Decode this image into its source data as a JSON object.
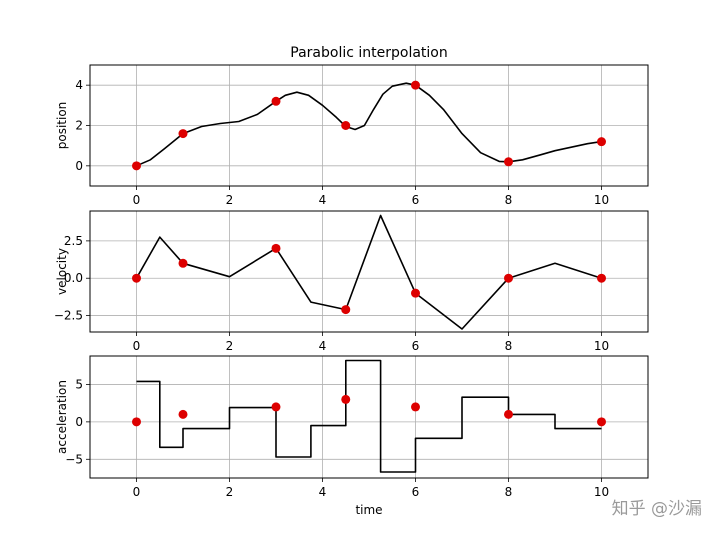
{
  "chart_data": {
    "type": "line",
    "title": "Parabolic interpolation",
    "xlabel": "time",
    "xlim": [
      -1,
      11
    ],
    "xticks": [
      0,
      2,
      4,
      6,
      8,
      10
    ],
    "point_color": "#dd0000",
    "line_color": "#000000",
    "watermark": "知乎 @沙漏",
    "grid": true,
    "subplots": [
      {
        "ylabel": "position",
        "ylim": [
          -1,
          5
        ],
        "yticks": [
          0,
          2,
          4
        ],
        "points": {
          "x": [
            0,
            1,
            3,
            4.5,
            6,
            8,
            10
          ],
          "y": [
            0,
            1.6,
            3.2,
            2.0,
            4.0,
            0.2,
            1.2
          ]
        },
        "line": {
          "x": [
            0,
            0.3,
            0.6,
            1.0,
            1.4,
            1.8,
            2.2,
            2.6,
            3.0,
            3.2,
            3.45,
            3.7,
            4.0,
            4.3,
            4.5,
            4.7,
            4.9,
            5.1,
            5.3,
            5.5,
            5.8,
            6.0,
            6.3,
            6.6,
            7.0,
            7.4,
            7.8,
            8.0,
            8.3,
            8.7,
            9.0,
            9.4,
            9.7,
            10.0
          ],
          "y": [
            0,
            0.3,
            0.85,
            1.6,
            1.95,
            2.1,
            2.2,
            2.55,
            3.2,
            3.5,
            3.65,
            3.5,
            3.0,
            2.4,
            1.95,
            1.8,
            2.0,
            2.8,
            3.55,
            3.95,
            4.1,
            4.0,
            3.5,
            2.8,
            1.6,
            0.65,
            0.22,
            0.2,
            0.3,
            0.55,
            0.75,
            0.95,
            1.1,
            1.2
          ]
        }
      },
      {
        "ylabel": "velocity",
        "ylim": [
          -3.6,
          4.5
        ],
        "yticks": [
          -2.5,
          0.0,
          2.5
        ],
        "ytick_labels": [
          "−2.5",
          "0.0",
          "2.5"
        ],
        "points": {
          "x": [
            0,
            1,
            3,
            4.5,
            6,
            8,
            10
          ],
          "y": [
            0,
            1.0,
            2.0,
            -2.1,
            -1.0,
            0,
            0
          ]
        },
        "line": {
          "x": [
            0,
            0.5,
            1.0,
            2.0,
            3.0,
            3.75,
            4.5,
            5.25,
            6.0,
            7.0,
            8.0,
            9.0,
            10.0
          ],
          "y": [
            0,
            2.75,
            1.0,
            0.1,
            2.0,
            -1.6,
            -2.1,
            4.2,
            -1.0,
            -3.4,
            0,
            1.0,
            0
          ]
        }
      },
      {
        "ylabel": "acceleration",
        "ylim": [
          -7.5,
          8.8
        ],
        "yticks": [
          -5,
          0,
          5
        ],
        "ytick_labels": [
          "−5",
          "0",
          "5"
        ],
        "points": {
          "x": [
            0,
            1,
            3,
            4.5,
            6,
            8,
            10
          ],
          "y": [
            0,
            1,
            2,
            3,
            2,
            1,
            0
          ]
        },
        "steps": [
          {
            "x0": 0,
            "x1": 0.5,
            "y": 5.4
          },
          {
            "x0": 0.5,
            "x1": 1.0,
            "y": -3.4
          },
          {
            "x0": 1.0,
            "x1": 2.0,
            "y": -0.9
          },
          {
            "x0": 2.0,
            "x1": 3.0,
            "y": 1.9
          },
          {
            "x0": 3.0,
            "x1": 3.75,
            "y": -4.7
          },
          {
            "x0": 3.75,
            "x1": 4.5,
            "y": -0.5
          },
          {
            "x0": 4.5,
            "x1": 5.25,
            "y": 8.2
          },
          {
            "x0": 5.25,
            "x1": 6.0,
            "y": -6.7
          },
          {
            "x0": 6.0,
            "x1": 7.0,
            "y": -2.2
          },
          {
            "x0": 7.0,
            "x1": 8.0,
            "y": 3.3
          },
          {
            "x0": 8.0,
            "x1": 9.0,
            "y": 1.0
          },
          {
            "x0": 9.0,
            "x1": 10.0,
            "y": -0.9
          }
        ]
      }
    ]
  }
}
